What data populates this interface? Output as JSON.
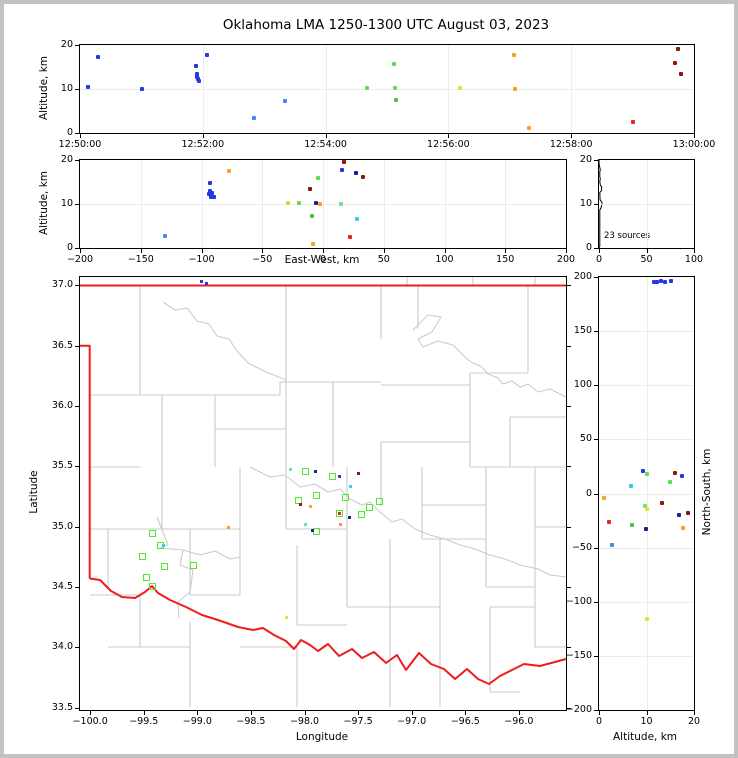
{
  "title": "Oklahoma LMA 1250-1300 UTC August 03, 2023",
  "palette": {
    "blue": "#2438e8",
    "navy": "#1c1c9c",
    "dodger": "#3b8df2",
    "cyan": "#35c9f5",
    "mint": "#63e68f",
    "ltgreen": "#5fdd55",
    "green": "#3fc83f",
    "ygreen": "#c2e331",
    "yellow": "#e0e431",
    "orange": "#ff9f1c",
    "salmon": "#f28e76",
    "red": "#e32616",
    "darkred": "#8c1507",
    "sqgreen": "#55e636",
    "state_border": "#ee1c1c",
    "county_line": "#cbcbcb",
    "grid": "#ececec",
    "hist_line": "#000000"
  },
  "panels": {
    "time_alt": {
      "ylabel": "Altitude, km",
      "xlim": [
        0,
        600
      ],
      "ylim": [
        0,
        20
      ],
      "grid": true,
      "xticks": [
        [
          0,
          "12:50:00"
        ],
        [
          120,
          "12:52:00"
        ],
        [
          240,
          "12:54:00"
        ],
        [
          360,
          "12:56:00"
        ],
        [
          480,
          "12:58:00"
        ],
        [
          600,
          "13:00:00"
        ]
      ],
      "yticks": [
        [
          0,
          "0"
        ],
        [
          10,
          "10"
        ],
        [
          20,
          "20"
        ]
      ],
      "points": [
        [
          8,
          10.4,
          "blue"
        ],
        [
          18,
          17.2,
          "blue"
        ],
        [
          61,
          10.1,
          "blue"
        ],
        [
          113,
          15.2,
          "blue"
        ],
        [
          114,
          13.4,
          "blue"
        ],
        [
          114,
          12.8,
          "blue"
        ],
        [
          115,
          12.2,
          "blue"
        ],
        [
          116,
          11.8,
          "blue"
        ],
        [
          124,
          17.7,
          "blue"
        ],
        [
          170,
          3.4,
          "dodger"
        ],
        [
          200,
          7.2,
          "dodger"
        ],
        [
          280,
          10.3,
          "ltgreen"
        ],
        [
          307,
          15.6,
          "ltgreen"
        ],
        [
          308,
          10.3,
          "ltgreen"
        ],
        [
          309,
          7.4,
          "green"
        ],
        [
          371,
          10.2,
          "yellow"
        ],
        [
          424,
          17.7,
          "orange"
        ],
        [
          425,
          10.0,
          "orange"
        ],
        [
          439,
          1.2,
          "orange"
        ],
        [
          540,
          2.5,
          "red"
        ],
        [
          584,
          19.0,
          "darkred"
        ],
        [
          581,
          15.8,
          "darkred"
        ],
        [
          587,
          13.3,
          "darkred"
        ]
      ]
    },
    "ew_alt": {
      "xlabel": "East-West, km",
      "ylabel": "Altitude, km",
      "xlim": [
        -200,
        200
      ],
      "ylim": [
        0,
        20
      ],
      "grid": true,
      "xticks": [
        [
          -200,
          "−200"
        ],
        [
          -150,
          "−150"
        ],
        [
          -100,
          "−100"
        ],
        [
          -50,
          "−50"
        ],
        [
          0,
          "0"
        ],
        [
          50,
          "50"
        ],
        [
          100,
          "100"
        ],
        [
          150,
          "150"
        ],
        [
          200,
          "200"
        ]
      ],
      "yticks": [
        [
          0,
          "0"
        ],
        [
          10,
          "10"
        ],
        [
          20,
          "20"
        ]
      ],
      "points": [
        [
          -93,
          14.8,
          "blue"
        ],
        [
          -93,
          13.0,
          "blue"
        ],
        [
          -94,
          12.3,
          "blue"
        ],
        [
          -92,
          11.7,
          "blue"
        ],
        [
          -90,
          11.6,
          "blue"
        ],
        [
          -91,
          12.6,
          "blue"
        ],
        [
          16,
          17.8,
          "blue"
        ],
        [
          -130,
          2.7,
          "dodger"
        ],
        [
          -77,
          17.6,
          "orange"
        ],
        [
          -2.5,
          9.9,
          "orange"
        ],
        [
          -8,
          1.0,
          "orange"
        ],
        [
          17,
          19.5,
          "darkred"
        ],
        [
          33,
          16.1,
          "darkred"
        ],
        [
          -11,
          13.3,
          "darkred"
        ],
        [
          27,
          17.1,
          "navy"
        ],
        [
          -6,
          10.2,
          "navy"
        ],
        [
          -4,
          15.8,
          "ltgreen"
        ],
        [
          -20,
          10.2,
          "ltgreen"
        ],
        [
          15,
          10.0,
          "mint"
        ],
        [
          -9,
          7.3,
          "green"
        ],
        [
          -29,
          10.2,
          "ygreen"
        ],
        [
          28,
          6.7,
          "cyan"
        ],
        [
          22,
          2.4,
          "red"
        ]
      ]
    },
    "hist": {
      "annotation": "23 sources",
      "xlim": [
        0,
        100
      ],
      "ylim": [
        0,
        20
      ],
      "grid": true,
      "xticks": [
        [
          0,
          "0"
        ],
        [
          50,
          "50"
        ],
        [
          100,
          "100"
        ]
      ],
      "yticks": [
        [
          0,
          "0"
        ],
        [
          10,
          "10"
        ],
        [
          20,
          "20"
        ]
      ],
      "curve": [
        [
          0,
          0
        ],
        [
          0.8,
          0.4
        ],
        [
          0.8,
          8.6
        ],
        [
          1.8,
          9.0
        ],
        [
          3.2,
          9.8
        ],
        [
          3.2,
          10.4
        ],
        [
          1.2,
          10.9
        ],
        [
          0.8,
          12.6
        ],
        [
          2.6,
          13.1
        ],
        [
          2.8,
          13.9
        ],
        [
          1.4,
          14.3
        ],
        [
          0.8,
          15.1
        ],
        [
          1.4,
          15.7
        ],
        [
          0.8,
          16.2
        ],
        [
          0.8,
          17.3
        ],
        [
          1.4,
          17.8
        ],
        [
          0.8,
          18.3
        ],
        [
          0,
          19.2
        ],
        [
          0,
          20
        ]
      ]
    },
    "map": {
      "xlabel": "Longitude",
      "ylabel": "Latitude",
      "xlim": [
        -100.095,
        -95.56
      ],
      "ylim": [
        33.48,
        37.07
      ],
      "grid": false,
      "marker": "sm",
      "ticks_right": true,
      "xticks": [
        [
          -100.0,
          "−100.0"
        ],
        [
          -99.5,
          "−99.5"
        ],
        [
          -99.0,
          "−99.0"
        ],
        [
          -98.5,
          "−98.5"
        ],
        [
          -98.0,
          "−98.0"
        ],
        [
          -97.5,
          "−97.5"
        ],
        [
          -97.0,
          "−97.0"
        ],
        [
          -96.5,
          "−96.5"
        ],
        [
          -96.0,
          "−96.0"
        ]
      ],
      "yticks": [
        [
          33.5,
          "33.5"
        ],
        [
          34.0,
          "34.0"
        ],
        [
          34.5,
          "34.5"
        ],
        [
          35.0,
          "35.0"
        ],
        [
          35.5,
          "35.5"
        ],
        [
          36.0,
          "36.0"
        ],
        [
          36.5,
          "36.5"
        ],
        [
          37.0,
          "37.0"
        ]
      ],
      "points": [
        [
          -98.96,
          37.03,
          "blue"
        ],
        [
          -98.91,
          37.02,
          "blue"
        ],
        [
          -97.67,
          35.42,
          "blue"
        ],
        [
          -97.9,
          35.46,
          "navy"
        ],
        [
          -97.93,
          34.97,
          "navy"
        ],
        [
          -97.58,
          35.08,
          "navy"
        ],
        [
          -97.5,
          35.44,
          "darkred"
        ],
        [
          -98.04,
          35.18,
          "darkred"
        ],
        [
          -98.13,
          35.47,
          "mint"
        ],
        [
          -97.99,
          35.02,
          "mint"
        ],
        [
          -97.57,
          35.33,
          "cyan"
        ],
        [
          -99.32,
          34.84,
          "cyan"
        ],
        [
          -97.94,
          35.17,
          "orange"
        ],
        [
          -98.71,
          34.99,
          "orange"
        ],
        [
          -97.66,
          35.02,
          "salmon"
        ],
        [
          -97.67,
          35.11,
          "red"
        ],
        [
          -98.17,
          34.25,
          "yellow"
        ]
      ],
      "squares": [
        [
          -97.99,
          35.46
        ],
        [
          -97.74,
          35.42
        ],
        [
          -98.06,
          35.22
        ],
        [
          -97.89,
          35.26
        ],
        [
          -97.62,
          35.24
        ],
        [
          -97.3,
          35.21
        ],
        [
          -97.39,
          35.16
        ],
        [
          -97.47,
          35.1
        ],
        [
          -97.67,
          35.11
        ],
        [
          -97.89,
          34.96
        ],
        [
          -99.42,
          34.94
        ],
        [
          -99.34,
          34.84
        ],
        [
          -99.51,
          34.75
        ],
        [
          -99.31,
          34.67
        ],
        [
          -99.04,
          34.68
        ],
        [
          -99.47,
          34.58
        ],
        [
          -99.42,
          34.5
        ]
      ]
    },
    "ns_alt": {
      "xlabel": "Altitude, km",
      "ylabel": "North-South, km",
      "xlim": [
        0,
        20
      ],
      "ylim": [
        -200,
        200
      ],
      "grid": true,
      "xticks": [
        [
          0,
          "0"
        ],
        [
          10,
          "10"
        ],
        [
          20,
          "20"
        ]
      ],
      "yticks": [
        [
          -200,
          "−200"
        ],
        [
          -150,
          "−150"
        ],
        [
          -100,
          "−100"
        ],
        [
          -50,
          "−50"
        ],
        [
          0,
          "0"
        ],
        [
          50,
          "50"
        ],
        [
          100,
          "100"
        ],
        [
          150,
          "150"
        ],
        [
          200,
          "200"
        ]
      ],
      "points": [
        [
          11.5,
          195,
          "blue"
        ],
        [
          12.3,
          195,
          "blue"
        ],
        [
          13.0,
          196,
          "blue"
        ],
        [
          13.9,
          195,
          "blue"
        ],
        [
          15.2,
          196,
          "blue"
        ],
        [
          9.3,
          21,
          "blue"
        ],
        [
          17.5,
          16,
          "blue"
        ],
        [
          10.0,
          18,
          "ltgreen"
        ],
        [
          14.9,
          11,
          "ltgreen"
        ],
        [
          16.1,
          19,
          "darkred"
        ],
        [
          13.2,
          -9,
          "darkred"
        ],
        [
          18.8,
          -18,
          "darkred"
        ],
        [
          6.8,
          7,
          "cyan"
        ],
        [
          1.0,
          -4,
          "orange"
        ],
        [
          17.7,
          -32,
          "orange"
        ],
        [
          9.7,
          -12,
          "mint"
        ],
        [
          10.1,
          -14,
          "yellow"
        ],
        [
          10.1,
          -116,
          "yellow"
        ],
        [
          2.1,
          -26,
          "red"
        ],
        [
          7.0,
          -29,
          "green"
        ],
        [
          9.9,
          -33,
          "navy"
        ],
        [
          16.8,
          -20,
          "navy"
        ],
        [
          2.7,
          -48,
          "dodger"
        ]
      ]
    }
  }
}
